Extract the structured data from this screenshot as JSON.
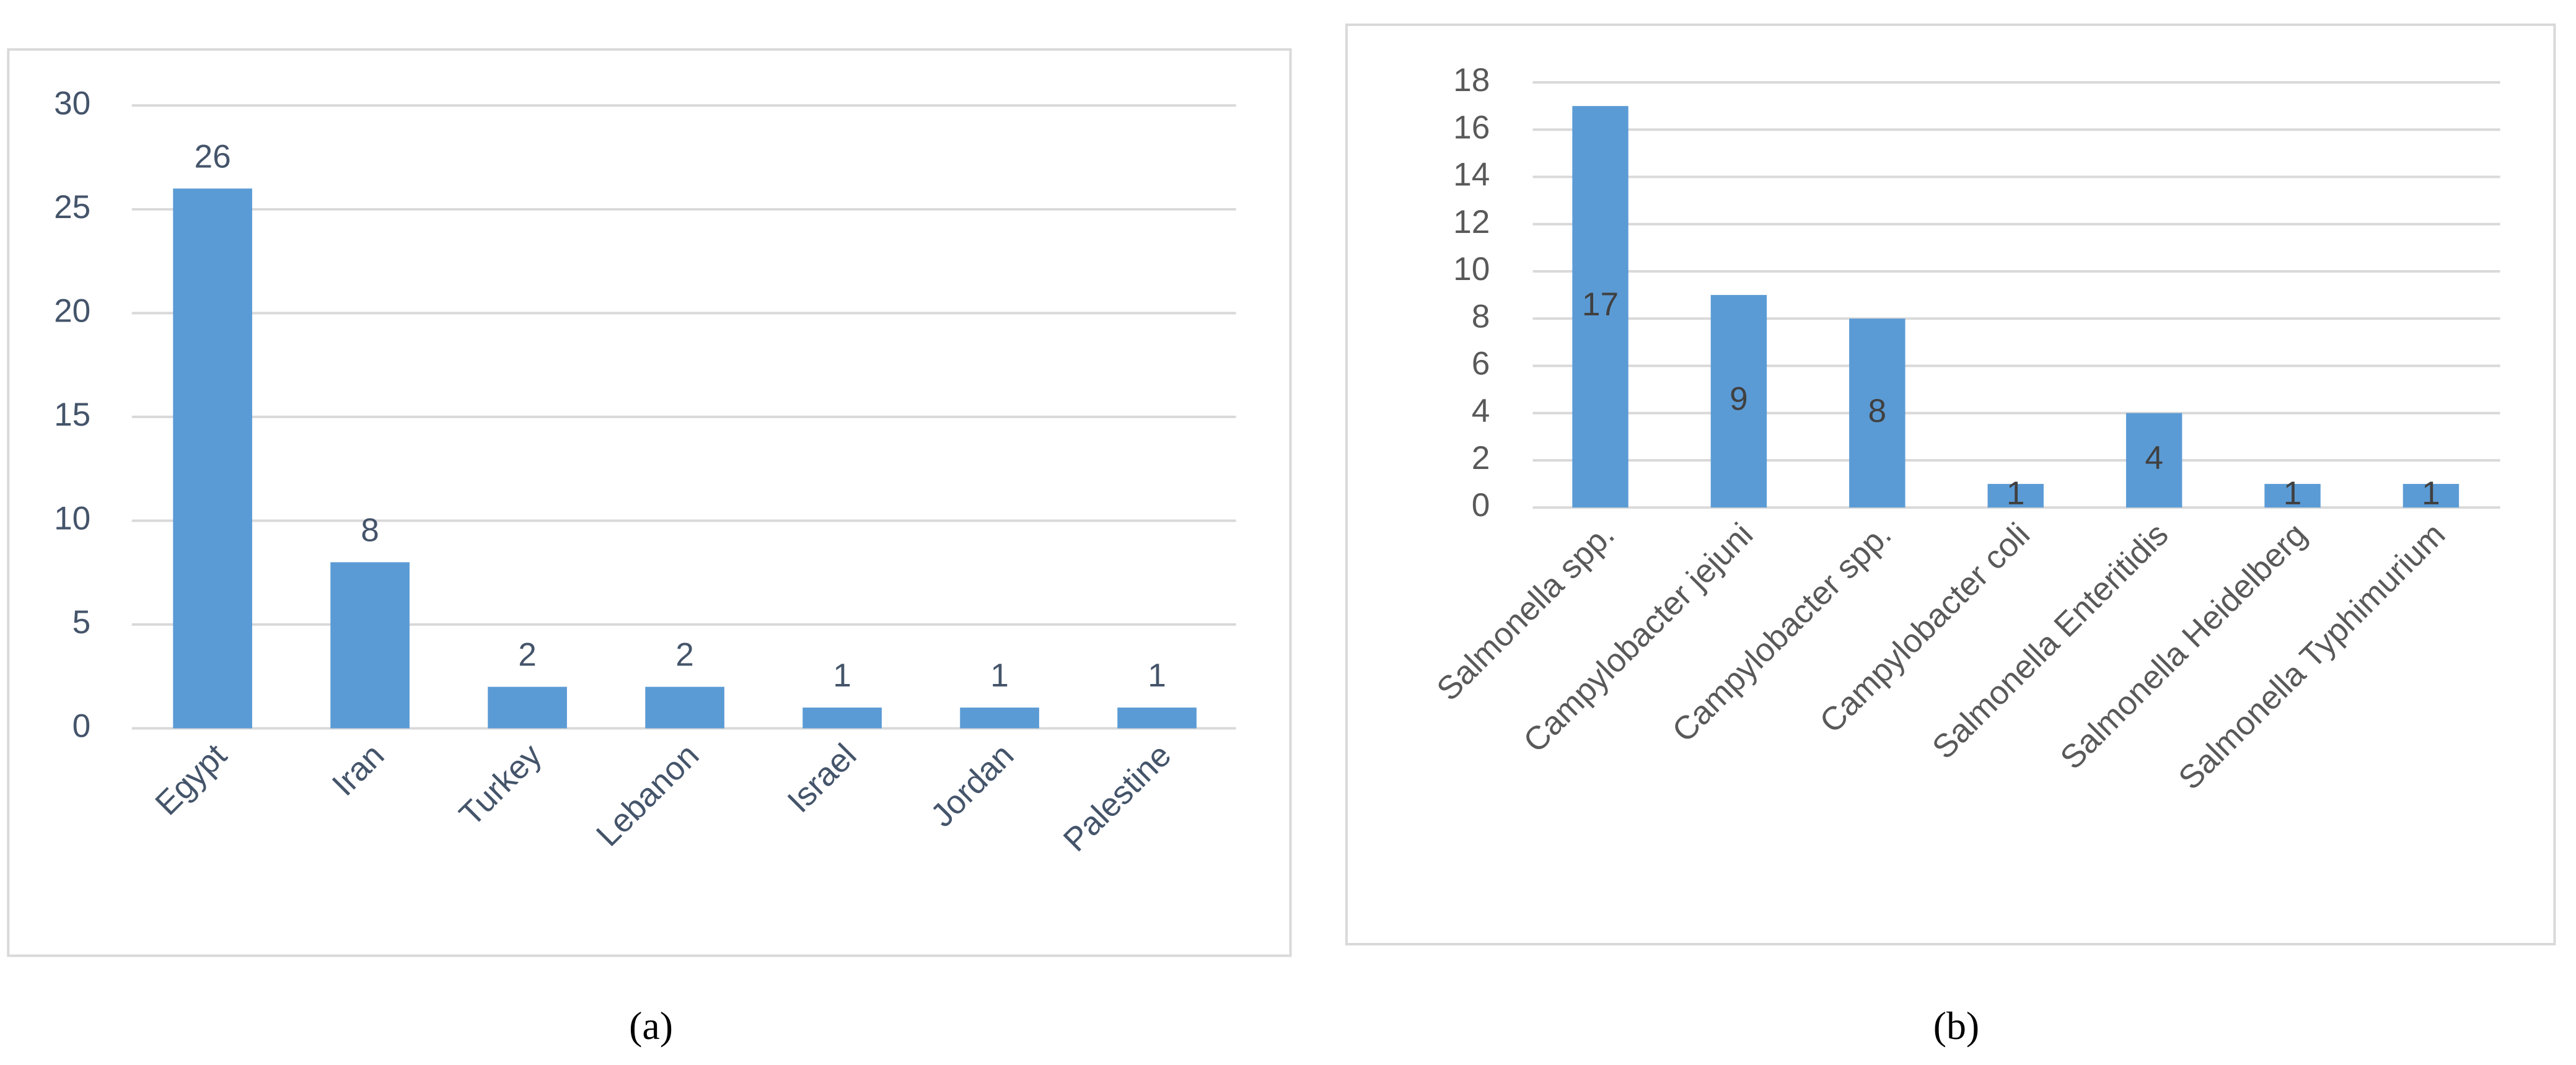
{
  "chart_data": [
    {
      "type": "bar",
      "caption": "(a)",
      "categories": [
        "Egypt",
        "Iran",
        "Turkey",
        "Lebanon",
        "Israel",
        "Jordan",
        "Palestine"
      ],
      "values": [
        26,
        8,
        2,
        2,
        1,
        1,
        1
      ],
      "color": "#5b9bd5",
      "ylim": [
        0,
        30
      ],
      "yticks": [
        0,
        5,
        10,
        15,
        20,
        25,
        30
      ],
      "grid": true
    },
    {
      "type": "bar",
      "caption": "(b)",
      "categories": [
        "Salmonella spp.",
        "Campylobacter jejuni",
        "Campylobacter spp.",
        "Campylobacter coli",
        "Salmonella  Enteritidis",
        "Salmonella Heidelberg",
        "Salmonella Typhimurium"
      ],
      "values": [
        17,
        9,
        8,
        1,
        4,
        1,
        1
      ],
      "color": "#5b9bd5",
      "ylim": [
        0,
        18
      ],
      "yticks": [
        0,
        2,
        4,
        6,
        8,
        10,
        12,
        14,
        16,
        18
      ],
      "grid": true
    }
  ]
}
